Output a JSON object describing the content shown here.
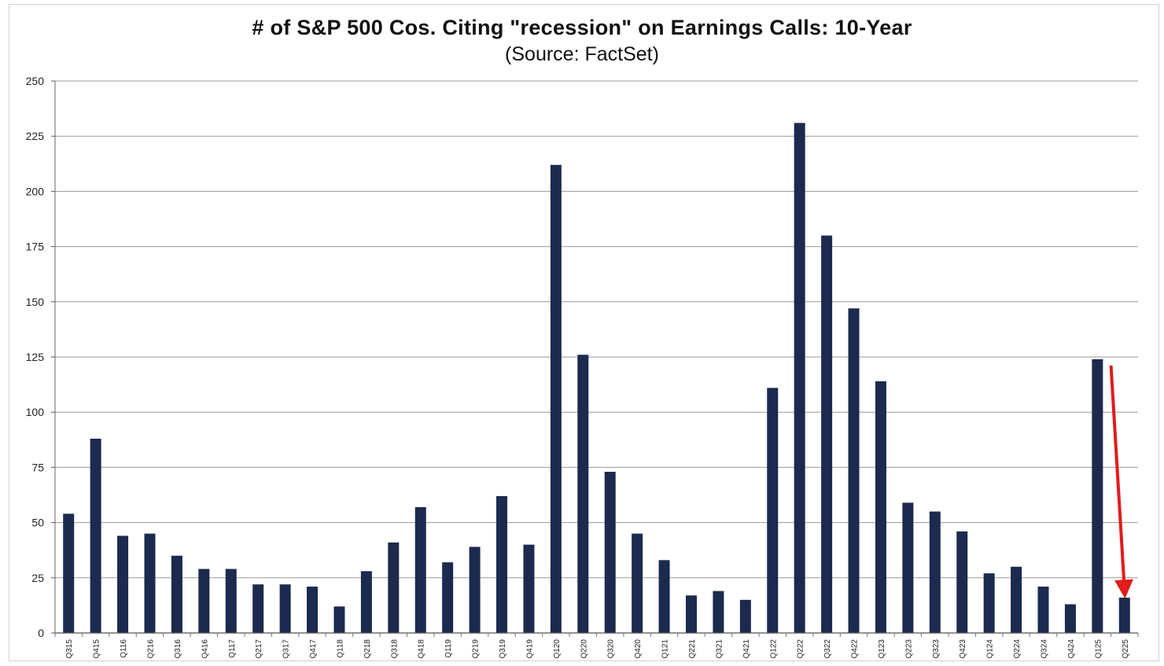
{
  "chart_data": {
    "type": "bar",
    "title": "# of S&P 500 Cos. Citing \"recession\" on Earnings Calls: 10-Year",
    "subtitle": "(Source: FactSet)",
    "xlabel": "",
    "ylabel": "",
    "ylim": [
      0,
      250
    ],
    "yticks": [
      0,
      25,
      50,
      75,
      100,
      125,
      150,
      175,
      200,
      225,
      250
    ],
    "grid": true,
    "categories": [
      "Q315",
      "Q415",
      "Q116",
      "Q216",
      "Q316",
      "Q416",
      "Q117",
      "Q217",
      "Q317",
      "Q417",
      "Q118",
      "Q218",
      "Q318",
      "Q418",
      "Q119",
      "Q219",
      "Q319",
      "Q419",
      "Q120",
      "Q220",
      "Q320",
      "Q420",
      "Q121",
      "Q221",
      "Q321",
      "Q421",
      "Q122",
      "Q222",
      "Q322",
      "Q422",
      "Q123",
      "Q223",
      "Q323",
      "Q423",
      "Q124",
      "Q224",
      "Q324",
      "Q424",
      "Q125",
      "Q225"
    ],
    "values": [
      54,
      88,
      44,
      45,
      35,
      29,
      29,
      22,
      22,
      21,
      12,
      28,
      41,
      57,
      32,
      39,
      62,
      40,
      212,
      126,
      73,
      45,
      33,
      17,
      19,
      15,
      111,
      231,
      180,
      147,
      114,
      59,
      55,
      46,
      27,
      30,
      21,
      13,
      124,
      16
    ],
    "bar_color": "#1b2a4e",
    "annotation": {
      "type": "arrow",
      "from_category": "Q125",
      "to_category": "Q225",
      "color": "#e21b1b"
    }
  }
}
